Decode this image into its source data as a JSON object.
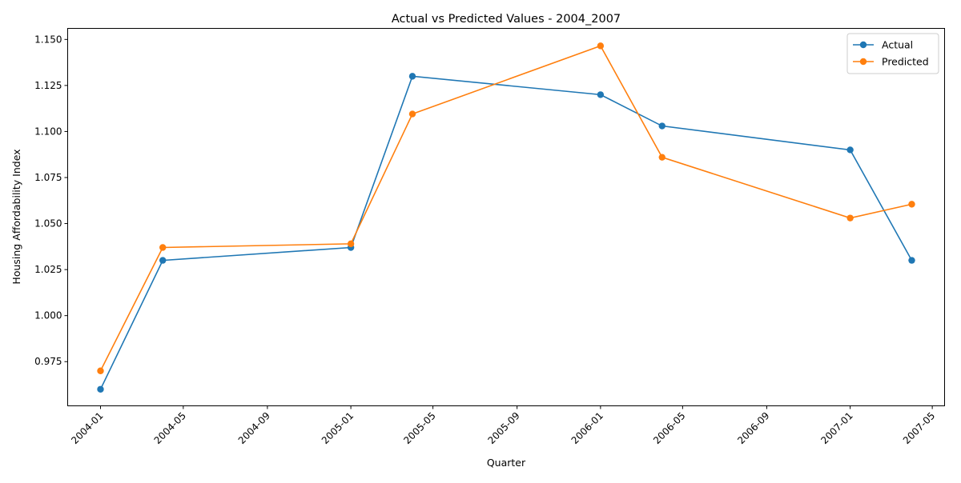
{
  "chart_data": {
    "type": "line",
    "title": "Actual vs Predicted Values - 2004_2007",
    "xlabel": "Quarter",
    "ylabel": "Housing Affordability Index",
    "x": [
      "2004-01-01",
      "2004-04-01",
      "2005-01-01",
      "2005-04-01",
      "2006-01-01",
      "2006-04-01",
      "2007-01-01",
      "2007-04-01"
    ],
    "series": [
      {
        "name": "Actual",
        "color": "#1f77b4",
        "values": [
          0.96,
          1.03,
          1.037,
          1.13,
          1.12,
          1.103,
          1.09,
          1.03
        ]
      },
      {
        "name": "Predicted",
        "color": "#ff7f0e",
        "values": [
          0.97,
          1.037,
          1.039,
          1.1095,
          1.1465,
          1.086,
          1.053,
          1.0605
        ]
      }
    ],
    "x_ticks": [
      "2004-01",
      "2004-05",
      "2004-09",
      "2005-01",
      "2005-05",
      "2005-09",
      "2006-01",
      "2006-05",
      "2006-09",
      "2007-01",
      "2007-05"
    ],
    "xlim": [
      "2003-11-14",
      "2007-05-19"
    ],
    "y_ticks": [
      "0.975",
      "1.000",
      "1.025",
      "1.050",
      "1.075",
      "1.100",
      "1.125",
      "1.150"
    ],
    "ylim": [
      0.951,
      1.156
    ],
    "grid": false,
    "legend_position": "top-right"
  }
}
